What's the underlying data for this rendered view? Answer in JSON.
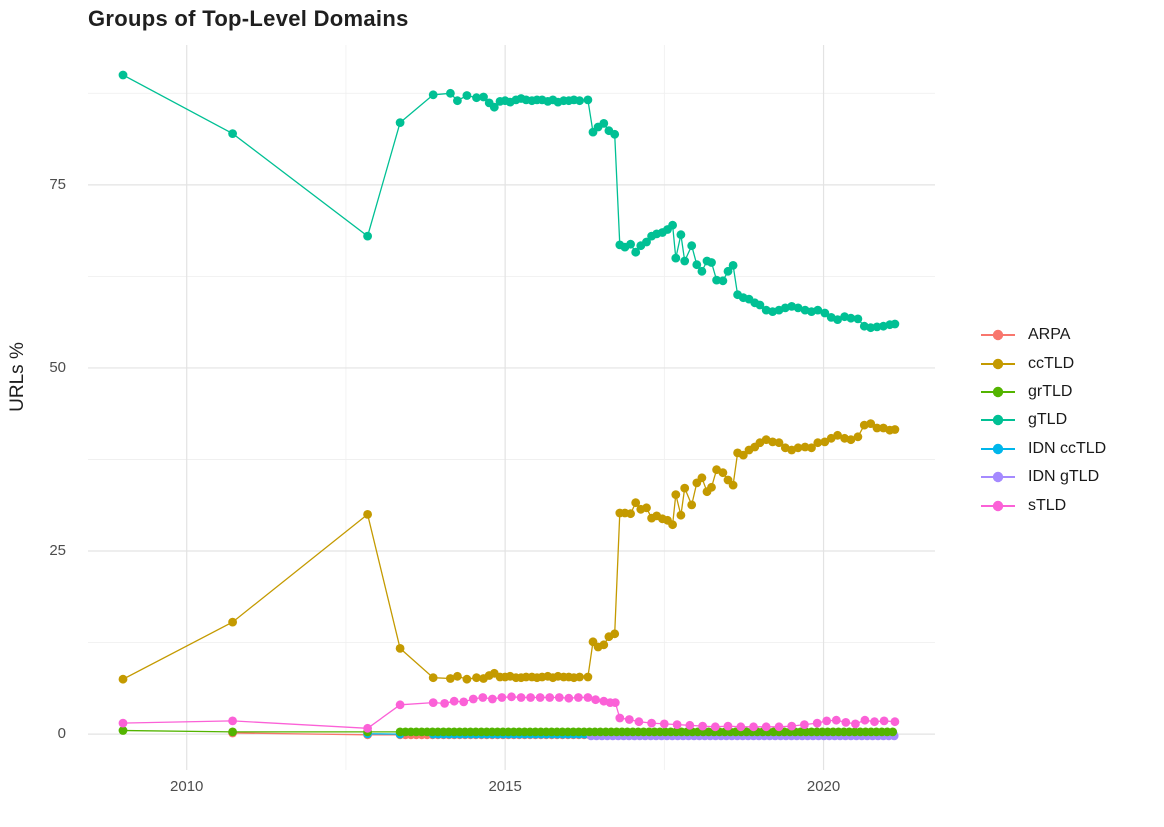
{
  "chart_data": {
    "type": "line",
    "title": "Groups of Top-Level Domains",
    "xlabel": "",
    "ylabel": "URLs %",
    "xlim": [
      2008.45,
      2021.75
    ],
    "ylim": [
      -4.9,
      94.1
    ],
    "x_ticks": [
      2010,
      2015,
      2020
    ],
    "y_ticks": [
      0,
      25,
      50,
      75
    ],
    "x_minor": [
      2012.5,
      2017.5
    ],
    "y_minor": [
      12.5,
      37.5,
      62.5,
      87.5
    ],
    "grid": true,
    "legend_position": "right",
    "series": [
      {
        "name": "ARPA",
        "color": "#F8766D",
        "z": 1,
        "points": [
          [
            2010.72,
            0.15
          ],
          [
            2012.84,
            -0.1
          ],
          {
            "from": 2013.35,
            "to": 2021.12,
            "step": 0.085,
            "y": -0.1
          }
        ]
      },
      {
        "name": "ccTLD",
        "color": "#C49A00",
        "z": 5,
        "points": [
          [
            2009.0,
            7.5
          ],
          [
            2010.72,
            15.3
          ],
          [
            2012.84,
            30.0
          ],
          [
            2013.35,
            11.7
          ],
          [
            2013.87,
            7.7
          ],
          [
            2014.14,
            7.6
          ],
          [
            2014.25,
            7.9
          ],
          [
            2014.4,
            7.5
          ],
          [
            2014.55,
            7.7
          ],
          [
            2014.66,
            7.6
          ],
          [
            2014.75,
            8.0
          ],
          [
            2014.83,
            8.3
          ],
          [
            2014.92,
            7.8
          ],
          [
            2015.0,
            7.8
          ],
          [
            2015.08,
            7.9
          ],
          [
            2015.17,
            7.7
          ],
          [
            2015.25,
            7.7
          ],
          [
            2015.33,
            7.8
          ],
          [
            2015.42,
            7.8
          ],
          [
            2015.5,
            7.7
          ],
          [
            2015.58,
            7.8
          ],
          [
            2015.67,
            7.9
          ],
          [
            2015.75,
            7.7
          ],
          [
            2015.83,
            7.9
          ],
          [
            2015.92,
            7.8
          ],
          [
            2016.0,
            7.8
          ],
          [
            2016.08,
            7.7
          ],
          [
            2016.17,
            7.8
          ],
          [
            2016.3,
            7.8
          ],
          [
            2016.38,
            12.6
          ],
          [
            2016.46,
            11.9
          ],
          [
            2016.55,
            12.2
          ],
          [
            2016.63,
            13.3
          ],
          [
            2016.72,
            13.7
          ],
          [
            2016.8,
            30.2
          ],
          [
            2016.88,
            30.2
          ],
          [
            2016.97,
            30.1
          ],
          [
            2017.05,
            31.6
          ],
          [
            2017.13,
            30.7
          ],
          [
            2017.22,
            30.9
          ],
          [
            2017.3,
            29.5
          ],
          [
            2017.38,
            29.8
          ],
          [
            2017.47,
            29.4
          ],
          [
            2017.55,
            29.2
          ],
          [
            2017.63,
            28.6
          ],
          [
            2017.68,
            32.7
          ],
          [
            2017.76,
            29.9
          ],
          [
            2017.82,
            33.6
          ],
          [
            2017.93,
            31.3
          ],
          [
            2018.01,
            34.3
          ],
          [
            2018.09,
            35.0
          ],
          [
            2018.17,
            33.1
          ],
          [
            2018.24,
            33.7
          ],
          [
            2018.32,
            36.1
          ],
          [
            2018.42,
            35.7
          ],
          [
            2018.5,
            34.7
          ],
          [
            2018.58,
            34.0
          ],
          [
            2018.65,
            38.4
          ],
          [
            2018.74,
            38.1
          ],
          [
            2018.83,
            38.8
          ],
          [
            2018.92,
            39.2
          ],
          [
            2019.0,
            39.8
          ],
          [
            2019.1,
            40.2
          ],
          [
            2019.2,
            39.9
          ],
          [
            2019.3,
            39.8
          ],
          [
            2019.4,
            39.1
          ],
          [
            2019.5,
            38.8
          ],
          [
            2019.6,
            39.1
          ],
          [
            2019.71,
            39.2
          ],
          [
            2019.81,
            39.1
          ],
          [
            2019.91,
            39.8
          ],
          [
            2020.02,
            39.9
          ],
          [
            2020.12,
            40.4
          ],
          [
            2020.22,
            40.8
          ],
          [
            2020.33,
            40.4
          ],
          [
            2020.43,
            40.2
          ],
          [
            2020.54,
            40.6
          ],
          [
            2020.64,
            42.2
          ],
          [
            2020.74,
            42.4
          ],
          [
            2020.84,
            41.8
          ],
          [
            2020.94,
            41.8
          ],
          [
            2021.04,
            41.5
          ],
          [
            2021.12,
            41.6
          ]
        ]
      },
      {
        "name": "grTLD",
        "color": "#53B400",
        "z": 4,
        "points": [
          [
            2009.0,
            0.5
          ],
          [
            2010.72,
            0.3
          ],
          [
            2012.84,
            0.3
          ],
          {
            "from": 2013.35,
            "to": 2021.12,
            "step": 0.085,
            "y": 0.3
          }
        ]
      },
      {
        "name": "gTLD",
        "color": "#00C094",
        "z": 6,
        "points": [
          [
            2009.0,
            90.0
          ],
          [
            2010.72,
            82.0
          ],
          [
            2012.84,
            68.0
          ],
          [
            2013.35,
            83.5
          ],
          [
            2013.87,
            87.3
          ],
          [
            2014.14,
            87.5
          ],
          [
            2014.25,
            86.5
          ],
          [
            2014.4,
            87.2
          ],
          [
            2014.55,
            86.9
          ],
          [
            2014.66,
            87.0
          ],
          [
            2014.75,
            86.2
          ],
          [
            2014.83,
            85.6
          ],
          [
            2014.92,
            86.4
          ],
          [
            2015.0,
            86.5
          ],
          [
            2015.08,
            86.3
          ],
          [
            2015.17,
            86.6
          ],
          [
            2015.25,
            86.8
          ],
          [
            2015.33,
            86.6
          ],
          [
            2015.42,
            86.5
          ],
          [
            2015.5,
            86.6
          ],
          [
            2015.58,
            86.6
          ],
          [
            2015.67,
            86.4
          ],
          [
            2015.75,
            86.6
          ],
          [
            2015.83,
            86.3
          ],
          [
            2015.92,
            86.5
          ],
          [
            2016.0,
            86.5
          ],
          [
            2016.08,
            86.6
          ],
          [
            2016.17,
            86.5
          ],
          [
            2016.3,
            86.6
          ],
          [
            2016.38,
            82.2
          ],
          [
            2016.46,
            82.9
          ],
          [
            2016.55,
            83.4
          ],
          [
            2016.63,
            82.4
          ],
          [
            2016.72,
            81.9
          ],
          [
            2016.8,
            66.8
          ],
          [
            2016.88,
            66.5
          ],
          [
            2016.97,
            66.9
          ],
          [
            2017.05,
            65.8
          ],
          [
            2017.13,
            66.7
          ],
          [
            2017.22,
            67.2
          ],
          [
            2017.3,
            68.0
          ],
          [
            2017.38,
            68.3
          ],
          [
            2017.47,
            68.5
          ],
          [
            2017.55,
            68.9
          ],
          [
            2017.63,
            69.5
          ],
          [
            2017.68,
            65.0
          ],
          [
            2017.76,
            68.2
          ],
          [
            2017.82,
            64.6
          ],
          [
            2017.93,
            66.7
          ],
          [
            2018.01,
            64.1
          ],
          [
            2018.09,
            63.2
          ],
          [
            2018.17,
            64.6
          ],
          [
            2018.24,
            64.4
          ],
          [
            2018.32,
            62.0
          ],
          [
            2018.42,
            61.9
          ],
          [
            2018.5,
            63.2
          ],
          [
            2018.58,
            64.0
          ],
          [
            2018.65,
            60.0
          ],
          [
            2018.74,
            59.6
          ],
          [
            2018.83,
            59.4
          ],
          [
            2018.92,
            58.9
          ],
          [
            2019.0,
            58.6
          ],
          [
            2019.1,
            57.9
          ],
          [
            2019.2,
            57.7
          ],
          [
            2019.3,
            57.9
          ],
          [
            2019.4,
            58.2
          ],
          [
            2019.5,
            58.4
          ],
          [
            2019.6,
            58.2
          ],
          [
            2019.71,
            57.9
          ],
          [
            2019.81,
            57.7
          ],
          [
            2019.91,
            57.9
          ],
          [
            2020.02,
            57.5
          ],
          [
            2020.12,
            56.9
          ],
          [
            2020.22,
            56.6
          ],
          [
            2020.33,
            57.0
          ],
          [
            2020.43,
            56.8
          ],
          [
            2020.54,
            56.7
          ],
          [
            2020.64,
            55.7
          ],
          [
            2020.74,
            55.5
          ],
          [
            2020.84,
            55.6
          ],
          [
            2020.94,
            55.7
          ],
          [
            2021.04,
            55.9
          ],
          [
            2021.12,
            56.0
          ]
        ]
      },
      {
        "name": "IDN ccTLD",
        "color": "#00B6EB",
        "z": 2,
        "points": [
          [
            2012.84,
            0.05
          ],
          [
            2013.35,
            0.0
          ],
          {
            "from": 2013.87,
            "to": 2021.12,
            "step": 0.085,
            "y": 0.0
          }
        ]
      },
      {
        "name": "IDN gTLD",
        "color": "#A58AFF",
        "z": 3,
        "points": [
          {
            "from": 2016.35,
            "to": 2021.12,
            "step": 0.085,
            "y": -0.25
          }
        ]
      },
      {
        "name": "sTLD",
        "color": "#FB61D7",
        "z": 7,
        "points": [
          [
            2009.0,
            1.5
          ],
          [
            2010.72,
            1.8
          ],
          [
            2012.84,
            0.8
          ],
          [
            2013.35,
            4.0
          ],
          [
            2013.87,
            4.3
          ],
          [
            2014.05,
            4.2
          ],
          [
            2014.2,
            4.5
          ],
          [
            2014.35,
            4.4
          ],
          [
            2014.5,
            4.8
          ],
          [
            2014.65,
            5.0
          ],
          [
            2014.8,
            4.8
          ],
          [
            2014.95,
            5.0
          ],
          [
            2015.1,
            5.1
          ],
          [
            2015.25,
            5.0
          ],
          [
            2015.4,
            5.0
          ],
          [
            2015.55,
            5.0
          ],
          [
            2015.7,
            5.0
          ],
          [
            2015.85,
            5.0
          ],
          [
            2016.0,
            4.9
          ],
          [
            2016.15,
            5.0
          ],
          [
            2016.3,
            5.0
          ],
          [
            2016.42,
            4.7
          ],
          [
            2016.55,
            4.5
          ],
          [
            2016.65,
            4.3
          ],
          [
            2016.73,
            4.3
          ],
          [
            2016.8,
            2.2
          ],
          [
            2016.95,
            2.0
          ],
          [
            2017.1,
            1.7
          ],
          [
            2017.3,
            1.5
          ],
          [
            2017.5,
            1.4
          ],
          [
            2017.7,
            1.3
          ],
          [
            2017.9,
            1.2
          ],
          [
            2018.1,
            1.1
          ],
          [
            2018.3,
            1.0
          ],
          [
            2018.5,
            1.1
          ],
          [
            2018.7,
            1.0
          ],
          [
            2018.9,
            1.0
          ],
          [
            2019.1,
            1.0
          ],
          [
            2019.3,
            1.0
          ],
          [
            2019.5,
            1.1
          ],
          [
            2019.7,
            1.3
          ],
          [
            2019.9,
            1.5
          ],
          [
            2020.05,
            1.8
          ],
          [
            2020.2,
            1.9
          ],
          [
            2020.35,
            1.6
          ],
          [
            2020.5,
            1.4
          ],
          [
            2020.65,
            1.9
          ],
          [
            2020.8,
            1.7
          ],
          [
            2020.95,
            1.8
          ],
          [
            2021.12,
            1.7
          ]
        ]
      }
    ]
  }
}
